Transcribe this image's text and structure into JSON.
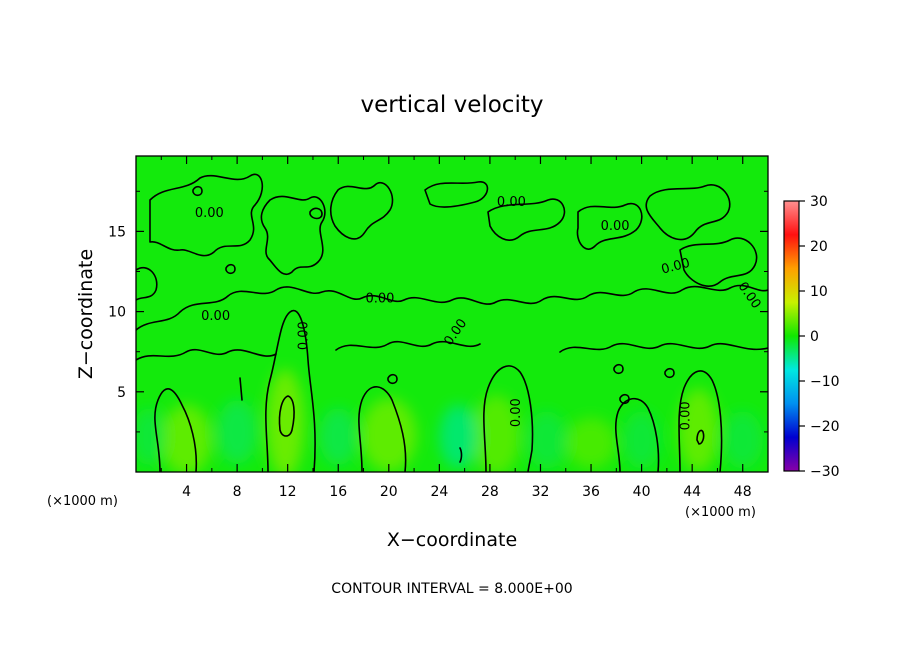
{
  "chart_data": {
    "type": "heatmap",
    "title": "vertical velocity",
    "xlabel": "X−coordinate",
    "ylabel": "Z−coordinate",
    "x_unit_left": "(×1000 m)",
    "x_unit_right": "(×1000 m)",
    "xlim": [
      0,
      50
    ],
    "ylim": [
      0,
      19.7
    ],
    "x_ticks": [
      4,
      8,
      12,
      16,
      20,
      24,
      28,
      32,
      36,
      40,
      44,
      48
    ],
    "x_tick_labels": [
      "4",
      "8",
      "12",
      "16",
      "20",
      "24",
      "28",
      "32",
      "36",
      "40",
      "44",
      "48"
    ],
    "y_ticks": [
      5,
      10,
      15
    ],
    "y_tick_labels": [
      "5",
      "10",
      "15"
    ],
    "colorbar": {
      "range": [
        -30,
        30
      ],
      "ticks": [
        30,
        20,
        10,
        0,
        -10,
        -20,
        -30
      ],
      "tick_labels": [
        "30",
        "20",
        "10",
        "0",
        "−10",
        "−20",
        "−30"
      ],
      "colors": [
        "#8800a8",
        "#0000d0",
        "#0090f0",
        "#00e8e0",
        "#10e800",
        "#c8f000",
        "#ffa000",
        "#ff1010",
        "#ff9090"
      ]
    },
    "background_value": 0,
    "background_color": "#13ea0c",
    "contour_interval_text": "CONTOUR INTERVAL = 8.000E+00",
    "contour_labels": [
      {
        "text": "0.00",
        "x": 5.8,
        "z": 16.1,
        "angle": 0
      },
      {
        "text": "0.00",
        "x": 29.7,
        "z": 16.8,
        "angle": 0
      },
      {
        "text": "0.00",
        "x": 37.9,
        "z": 15.3,
        "angle": 0
      },
      {
        "text": "0.00",
        "x": 42.7,
        "z": 12.8,
        "angle": -15
      },
      {
        "text": "0.00",
        "x": 48.5,
        "z": 11.0,
        "angle": 55
      },
      {
        "text": "0.00",
        "x": 19.3,
        "z": 10.8,
        "angle": 0
      },
      {
        "text": "0.00",
        "x": 6.3,
        "z": 9.7,
        "angle": 0
      },
      {
        "text": "0.00",
        "x": 13.3,
        "z": 8.5,
        "angle": -90
      },
      {
        "text": "0.00",
        "x": 25.3,
        "z": 8.7,
        "angle": -55
      },
      {
        "text": "0.00",
        "x": 30.1,
        "z": 3.7,
        "angle": -90
      },
      {
        "text": "0.00",
        "x": 43.5,
        "z": 3.5,
        "angle": -90
      }
    ],
    "updrafts": [
      {
        "x": 4.0,
        "z": 2.0,
        "rx": 2.0,
        "rz": 2.2,
        "value": 3.5
      },
      {
        "x": 11.8,
        "z": 3.0,
        "rx": 1.5,
        "rz": 3.4,
        "value": 4.0
      },
      {
        "x": 20.0,
        "z": 2.3,
        "rx": 2.2,
        "rz": 2.3,
        "value": 3.5
      },
      {
        "x": 28.5,
        "z": 2.3,
        "rx": 1.9,
        "rz": 2.5,
        "value": 3.0
      },
      {
        "x": 36.0,
        "z": 1.8,
        "rx": 2.0,
        "rz": 1.6,
        "value": 2.5
      },
      {
        "x": 44.5,
        "z": 2.6,
        "rx": 1.6,
        "rz": 2.6,
        "value": 3.5
      }
    ],
    "downdrafts": [
      {
        "x": 1.0,
        "z": 2.2,
        "rx": 1.3,
        "rz": 1.8,
        "value": -2.0
      },
      {
        "x": 8.0,
        "z": 2.5,
        "rx": 1.6,
        "rz": 2.0,
        "value": -2.5
      },
      {
        "x": 16.0,
        "z": 2.2,
        "rx": 1.5,
        "rz": 1.8,
        "value": -2.5
      },
      {
        "x": 25.5,
        "z": 2.2,
        "rx": 1.5,
        "rz": 2.0,
        "value": -4.0
      },
      {
        "x": 32.5,
        "z": 2.0,
        "rx": 1.6,
        "rz": 1.8,
        "value": -2.0
      },
      {
        "x": 40.0,
        "z": 2.0,
        "rx": 1.5,
        "rz": 1.8,
        "value": -2.0
      },
      {
        "x": 48.0,
        "z": 2.0,
        "rx": 1.6,
        "rz": 1.8,
        "value": -2.0
      }
    ],
    "legend": "colorbar-right",
    "grid": false
  }
}
